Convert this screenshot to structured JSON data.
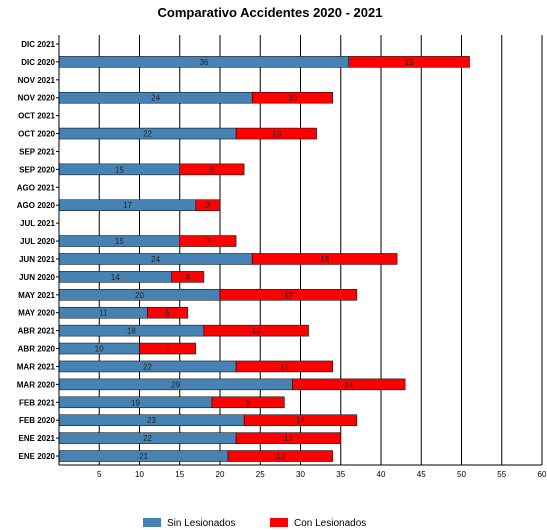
{
  "chart_data": {
    "type": "bar",
    "orientation": "horizontal",
    "stacked": true,
    "title": "Comparativo Accidentes 2020 - 2021",
    "categories": [
      "ENE 2020",
      "ENE 2021",
      "FEB 2020",
      "FEB 2021",
      "MAR 2020",
      "MAR 2021",
      "ABR 2020",
      "ABR 2021",
      "MAY 2020",
      "MAY 2021",
      "JUN 2020",
      "JUN 2021",
      "JUL 2020",
      "JUL 2021",
      "AGO 2020",
      "AGO 2021",
      "SEP 2020",
      "SEP 2021",
      "OCT 2020",
      "OCT 2021",
      "NOV 2020",
      "NOV 2021",
      "DIC 2020",
      "DIC 2021"
    ],
    "series": [
      {
        "name": "Sin Lesionados",
        "color": "#4682b4",
        "values": [
          21,
          22,
          23,
          19,
          29,
          22,
          10,
          18,
          11,
          20,
          14,
          24,
          15,
          null,
          17,
          null,
          15,
          null,
          22,
          null,
          24,
          null,
          36,
          null
        ]
      },
      {
        "name": "Con Lesionados",
        "color": "#ff0000",
        "values": [
          13,
          13,
          14,
          9,
          14,
          12,
          7,
          13,
          5,
          17,
          4,
          18,
          7,
          null,
          3,
          null,
          8,
          null,
          10,
          null,
          10,
          null,
          15,
          null
        ]
      }
    ],
    "xlim": [
      0,
      60
    ],
    "xticks": [
      5,
      10,
      15,
      20,
      25,
      30,
      35,
      40,
      45,
      50,
      55,
      60
    ],
    "grid": true,
    "legend_position": "bottom"
  }
}
